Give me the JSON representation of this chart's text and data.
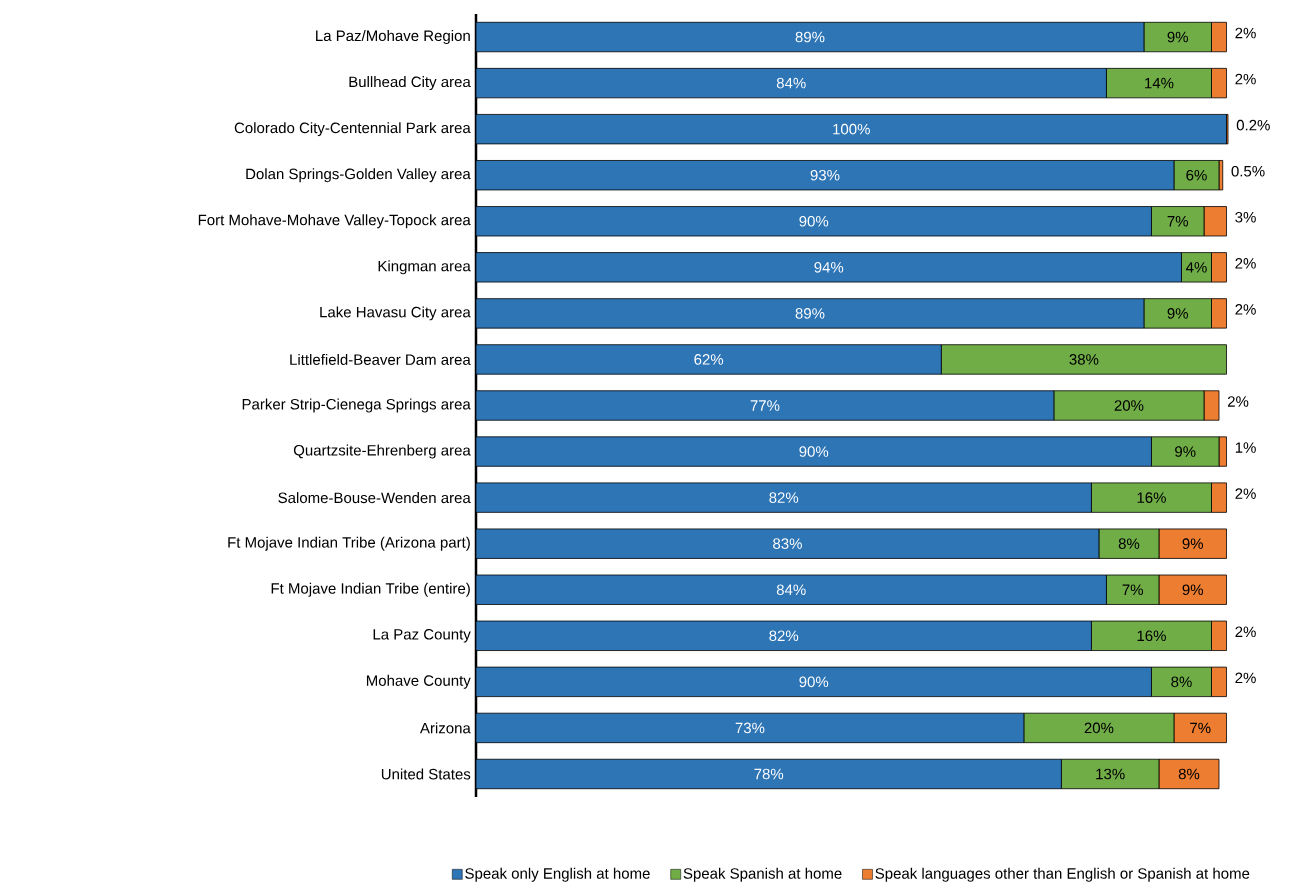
{
  "chart_data": {
    "type": "bar",
    "orientation": "horizontal",
    "stacked": true,
    "legend": "bottom",
    "categories": [
      "La Paz/Mohave Region",
      "Bullhead City area",
      "Colorado City-Centennial Park area",
      "Dolan Springs-Golden Valley area",
      "Fort Mohave-Mohave Valley-Topock area",
      "Kingman area",
      "Lake Havasu City area",
      "Littlefield-Beaver Dam area",
      "Parker Strip-Cienega Springs area",
      "Quartzsite-Ehrenberg area",
      "Salome-Bouse-Wenden area",
      "Ft Mojave Indian Tribe (Arizona part)",
      "Ft Mojave Indian Tribe (entire)",
      "La Paz County",
      "Mohave County",
      "Arizona",
      "United States"
    ],
    "series": [
      {
        "name": "Speak only English at home",
        "color": "#2e75b6",
        "values": [
          89,
          84,
          100,
          93,
          90,
          94,
          89,
          62,
          77,
          90,
          82,
          83,
          84,
          82,
          90,
          73,
          78
        ],
        "value_labels": [
          "89%",
          "84%",
          "100%",
          "93%",
          "90%",
          "94%",
          "89%",
          "62%",
          "77%",
          "90%",
          "82%",
          "83%",
          "84%",
          "82%",
          "90%",
          "73%",
          "78%"
        ]
      },
      {
        "name": "Speak Spanish at home",
        "color": "#70ad47",
        "values": [
          9,
          14,
          0,
          6,
          7,
          4,
          9,
          38,
          20,
          9,
          16,
          8,
          7,
          16,
          8,
          20,
          13
        ],
        "value_labels": [
          "9%",
          "14%",
          null,
          "6%",
          "7%",
          "4%",
          "9%",
          "38%",
          "20%",
          "9%",
          "16%",
          "8%",
          "7%",
          "16%",
          "8%",
          "20%",
          "13%"
        ]
      },
      {
        "name": "Speak languages other than English or Spanish at home",
        "color": "#ed7d31",
        "values": [
          2,
          2,
          0.2,
          0.5,
          3,
          2,
          2,
          0,
          2,
          1,
          2,
          9,
          9,
          2,
          2,
          7,
          8
        ],
        "value_labels": [
          "2%",
          "2%",
          "0.2%",
          "0.5%",
          "3%",
          "2%",
          "2%",
          null,
          "2%",
          "1%",
          "2%",
          "9%",
          "9%",
          "2%",
          "2%",
          "7%",
          "8%"
        ]
      }
    ]
  }
}
